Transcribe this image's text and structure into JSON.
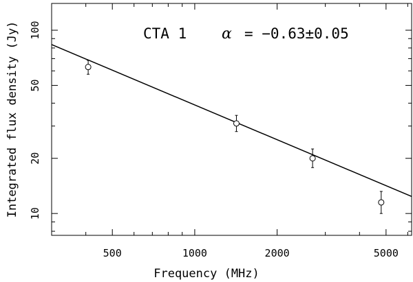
{
  "chart_data": {
    "type": "scatter",
    "xlabel": "Frequency (MHz)",
    "ylabel": "Integrated flux density (Jy)",
    "xscale": "log",
    "yscale": "log",
    "xlim": [
      300,
      6200
    ],
    "ylim": [
      7.6,
      140
    ],
    "x_ticks": [
      500,
      1000,
      2000,
      5000
    ],
    "y_ticks": [
      10,
      20,
      50,
      100
    ],
    "grid": false,
    "annotation": {
      "source": "CTA 1",
      "alpha_symbol": "α",
      "alpha_text": "= −0.63±0.05"
    },
    "series": [
      {
        "kind": "points",
        "points": [
          {
            "x": 408,
            "y": 63,
            "y_low": 57.5,
            "y_high": 68.5
          },
          {
            "x": 1420,
            "y": 31,
            "y_low": 28.0,
            "y_high": 34.3
          },
          {
            "x": 2695,
            "y": 20,
            "y_low": 17.8,
            "y_high": 22.5
          },
          {
            "x": 4800,
            "y": 11.5,
            "y_low": 10.0,
            "y_high": 13.2
          }
        ]
      },
      {
        "kind": "fit-line",
        "slope": -0.63,
        "x_range": [
          300,
          6200
        ],
        "ref_x": 1000,
        "ref_y": 39.1
      }
    ]
  }
}
